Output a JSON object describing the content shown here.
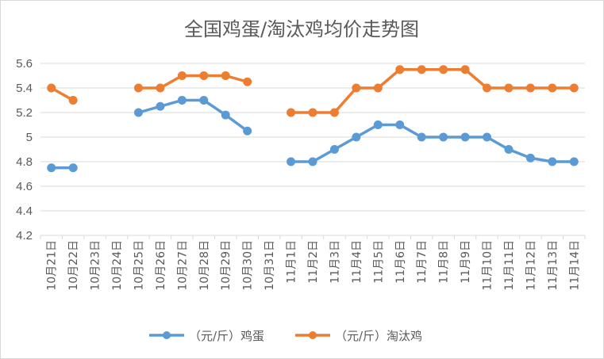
{
  "chart_data": {
    "type": "line",
    "title": "全国鸡蛋/淘汰鸡均价走势图",
    "categories": [
      "10月21日",
      "10月22日",
      "10月23日",
      "10月24日",
      "10月25日",
      "10月26日",
      "10月27日",
      "10月28日",
      "10月29日",
      "10月30日",
      "10月31日",
      "11月1日",
      "11月2日",
      "11月3日",
      "11月4日",
      "11月5日",
      "11月6日",
      "11月7日",
      "11月8日",
      "11月9日",
      "11月10日",
      "11月11日",
      "11月12日",
      "11月13日",
      "11月14日"
    ],
    "series": [
      {
        "name": "（元/斤）鸡蛋",
        "color": "#5b9bd5",
        "values": [
          4.75,
          4.75,
          null,
          null,
          5.2,
          5.25,
          5.3,
          5.3,
          5.18,
          5.05,
          null,
          4.8,
          4.8,
          4.9,
          5.0,
          5.1,
          5.1,
          5.0,
          5.0,
          5.0,
          5.0,
          4.9,
          4.83,
          4.8,
          4.8
        ]
      },
      {
        "name": "（元/斤）淘汰鸡",
        "color": "#ed7d31",
        "values": [
          5.4,
          5.3,
          null,
          null,
          5.4,
          5.4,
          5.5,
          5.5,
          5.5,
          5.45,
          null,
          5.2,
          5.2,
          5.2,
          5.4,
          5.4,
          5.55,
          5.55,
          5.55,
          5.55,
          5.4,
          5.4,
          5.4,
          5.4,
          5.4
        ]
      }
    ],
    "ylim": [
      4.2,
      5.6
    ],
    "yticks": [
      "4.2",
      "4.4",
      "4.6",
      "4.8",
      "5",
      "5.2",
      "5.4",
      "5.6"
    ],
    "ytick_values": [
      4.2,
      4.4,
      4.6,
      4.8,
      5.0,
      5.2,
      5.4,
      5.6
    ],
    "grid": "horizontal",
    "legend": "bottom"
  }
}
